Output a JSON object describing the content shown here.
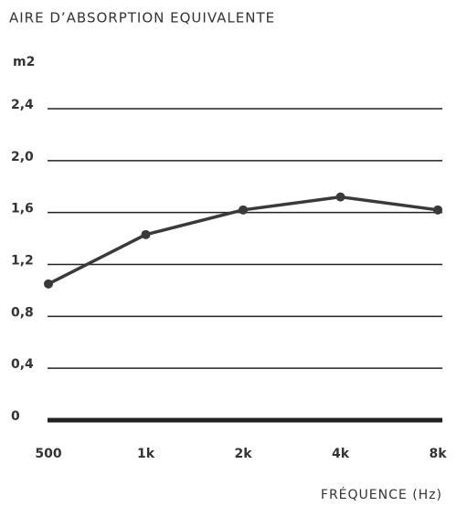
{
  "chart_data": {
    "type": "line",
    "title": "AIRE D’ABSORPTION EQUIVALENTE",
    "y_label": "m2",
    "x_label": "FRÉQUENCE (Hz)",
    "categories": [
      "500",
      "1k",
      "2k",
      "4k",
      "8k"
    ],
    "values": [
      1.05,
      1.43,
      1.62,
      1.72,
      1.62
    ],
    "color": "#3a3a3a",
    "ylim": [
      0,
      2.4
    ],
    "yticks": [
      0,
      {
        "value": 0.4,
        "label": "0,4"
      },
      {
        "value": 0.8,
        "label": "0,8"
      },
      {
        "value": 1.2,
        "label": "1,2"
      },
      {
        "value": 1.6,
        "label": "1,6"
      },
      {
        "value": 2.0,
        "label": "2,0"
      },
      {
        "value": 2.4,
        "label": "2,4"
      }
    ],
    "grid": true
  }
}
